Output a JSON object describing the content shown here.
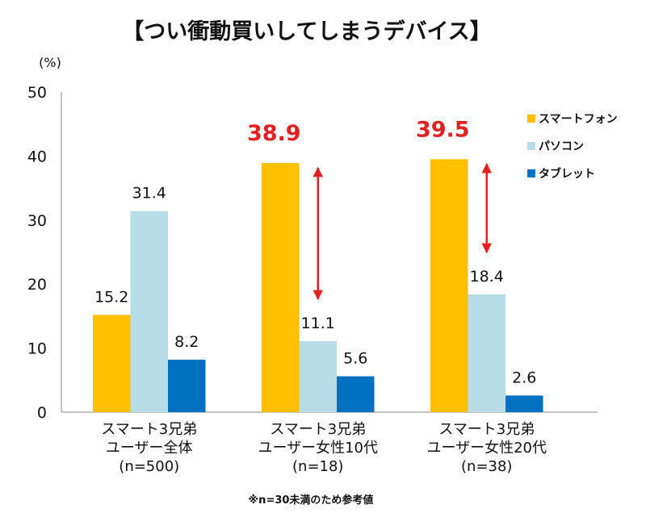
{
  "chart_data": {
    "type": "bar",
    "title": "【つい衝動買いしてしまうデバイス】",
    "ylabel": "(%)",
    "ylim": [
      0,
      50
    ],
    "yticks": [
      "0",
      "10",
      "20",
      "30",
      "40",
      "50"
    ],
    "grid": false,
    "legend_position": "right",
    "categories": [
      [
        "スマート3兄弟",
        "ユーザー全体",
        "(n=500)"
      ],
      [
        "スマート3兄弟",
        "ユーザー女性10代",
        "(n=18)"
      ],
      [
        "スマート3兄弟",
        "ユーザー女性20代",
        "(n=38)"
      ]
    ],
    "series": [
      {
        "name": "スマートフォン",
        "color": "#FFC000",
        "values": [
          15.2,
          38.9,
          39.5
        ]
      },
      {
        "name": "パソコン",
        "color": "#B7DDE8",
        "values": [
          31.4,
          11.1,
          18.4
        ]
      },
      {
        "name": "タブレット",
        "color": "#0070C0",
        "values": [
          8.2,
          5.6,
          2.6
        ]
      }
    ],
    "highlight_color": "#E52020",
    "highlighted_labels": [
      [
        1,
        0
      ],
      [
        2,
        0
      ]
    ],
    "annotations": [
      {
        "type": "double-arrow",
        "category": 1,
        "from": 38.9,
        "to": 11.1
      },
      {
        "type": "double-arrow",
        "category": 2,
        "from": 39.5,
        "to": 18.4
      }
    ],
    "footnote": "※n=30未満のため参考値"
  }
}
